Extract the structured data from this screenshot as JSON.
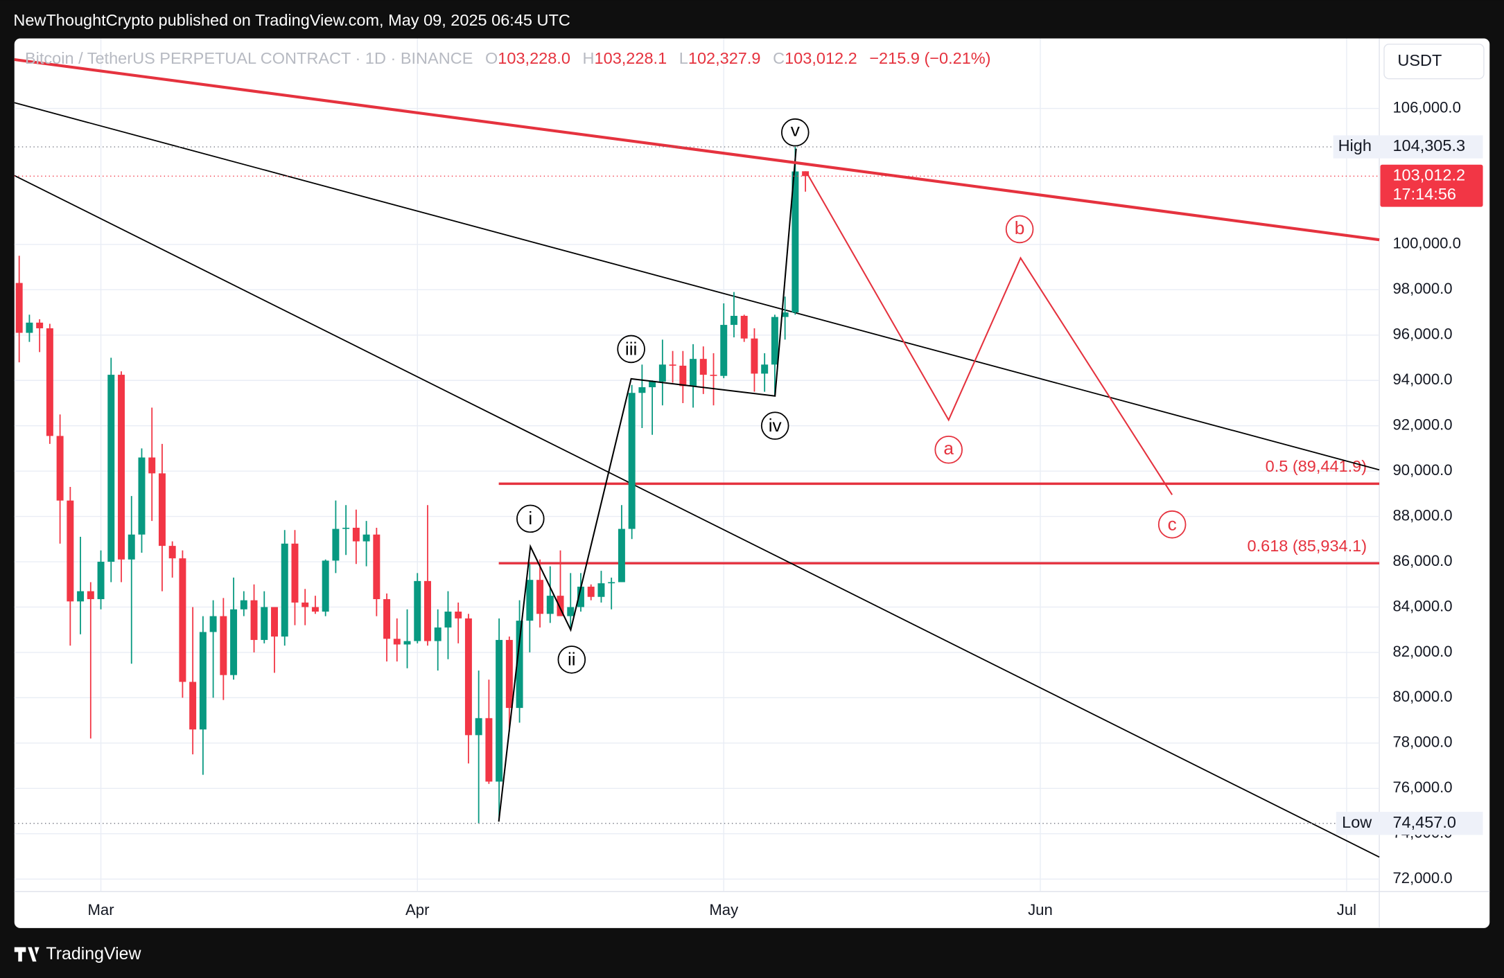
{
  "header": {
    "attribution": "NewThoughtCrypto published on TradingView.com, May 09, 2025 06:45 UTC",
    "brand": "TradingView"
  },
  "chart_data": {
    "type": "candlestick",
    "title": "Bitcoin / TetherUS PERPETUAL CONTRACT · 1D · BINANCE",
    "ohlc_header": [
      {
        "key": "O",
        "text": "103,228.0"
      },
      {
        "key": "H",
        "text": "103,228.1"
      },
      {
        "key": "L",
        "text": "102,327.9"
      },
      {
        "key": "C",
        "text": "103,012.2"
      }
    ],
    "change": "−215.9 (−0.21%)",
    "currency": "USDT",
    "open": [
      98300,
      96100,
      96550,
      96300,
      91550,
      88700,
      84250,
      84700,
      84350,
      86000,
      94250,
      86100,
      87200,
      90600,
      89900,
      86700,
      86150,
      80700,
      78600,
      82900,
      83600,
      81000,
      83900,
      84300,
      82550,
      84000,
      82700,
      86800,
      84200,
      84000,
      83800,
      86050,
      87450,
      87500,
      86900,
      87200,
      84350,
      82600,
      82350,
      82500,
      85150,
      82500,
      83100,
      83800,
      83500,
      78350,
      79100,
      76300,
      82550,
      79550,
      83400,
      85200,
      83700,
      84500,
      83600,
      84000,
      84900,
      84450,
      85050,
      85100,
      87450,
      93450,
      93700,
      93950,
      94700,
      94650,
      93750,
      94950,
      94250,
      94200,
      96450,
      96850,
      95850,
      94300,
      94700,
      96800,
      97000,
      103228.0
    ],
    "high": [
      99500,
      96900,
      96700,
      96500,
      92500,
      89300,
      87100,
      85100,
      86500,
      95000,
      94400,
      88900,
      91000,
      92800,
      91200,
      86900,
      86500,
      84000,
      83600,
      84300,
      84400,
      85300,
      84700,
      85000,
      84700,
      84000,
      87400,
      87400,
      84800,
      84500,
      86100,
      88700,
      88500,
      88300,
      87800,
      87500,
      84600,
      83500,
      83900,
      85500,
      88500,
      83900,
      84700,
      84200,
      83700,
      81200,
      80800,
      83500,
      82700,
      84300,
      85900,
      86100,
      85800,
      86500,
      85500,
      85500,
      85000,
      85600,
      85300,
      88500,
      93800,
      94700,
      94000,
      95800,
      95300,
      95300,
      95600,
      95500,
      95200,
      97400,
      97900,
      96900,
      96300,
      95200,
      96900,
      97700,
      104305.3,
      103228.1
    ],
    "low": [
      94800,
      95700,
      95250,
      91200,
      86800,
      82300,
      82800,
      78200,
      83900,
      85100,
      85100,
      81500,
      86400,
      87800,
      84700,
      85300,
      80000,
      77500,
      76600,
      80000,
      79900,
      80800,
      83600,
      82000,
      82400,
      81100,
      82300,
      83200,
      83200,
      83700,
      83600,
      85500,
      86300,
      85900,
      85800,
      83600,
      81600,
      81600,
      81300,
      82400,
      82300,
      81200,
      81700,
      82400,
      77100,
      74457,
      76200,
      74600,
      78500,
      78900,
      82000,
      83100,
      83300,
      83600,
      83100,
      83800,
      84300,
      84200,
      83900,
      85100,
      87000,
      91900,
      91600,
      92900,
      93900,
      93000,
      92800,
      93400,
      92900,
      94100,
      95900,
      95700,
      93500,
      93500,
      93300,
      95800,
      96900,
      102327.9
    ],
    "close": [
      96100,
      96550,
      96300,
      91550,
      88700,
      84250,
      84700,
      84350,
      86000,
      94250,
      86100,
      87200,
      90600,
      89900,
      86700,
      86150,
      80700,
      78600,
      82900,
      83600,
      81000,
      83900,
      84300,
      82550,
      84000,
      82700,
      86800,
      84200,
      84000,
      83800,
      86050,
      87450,
      87500,
      86900,
      87200,
      84350,
      82600,
      82350,
      82500,
      85150,
      82500,
      83100,
      83800,
      83500,
      78350,
      79100,
      76300,
      82550,
      79550,
      83400,
      85200,
      83700,
      84500,
      83600,
      84000,
      84900,
      84450,
      85050,
      85100,
      87450,
      93450,
      93700,
      93950,
      94700,
      94650,
      93750,
      94950,
      94250,
      94200,
      96450,
      96850,
      95850,
      94300,
      94700,
      96800,
      97000,
      103220,
      103012.2
    ],
    "up_color": "#089981",
    "down_color": "#f23645",
    "xlim": [
      -0.47,
      133.2
    ],
    "xticks": [
      {
        "value": 8,
        "label": "Mar"
      },
      {
        "value": 39,
        "label": "Apr"
      },
      {
        "value": 69,
        "label": "May"
      },
      {
        "value": 100,
        "label": "Jun"
      },
      {
        "value": 130,
        "label": "Jul"
      }
    ],
    "ylim": [
      71447,
      109087
    ],
    "yticks": [
      {
        "value": 72000,
        "label": "72,000.0"
      },
      {
        "value": 74000,
        "label": "74,000.0"
      },
      {
        "value": 76000,
        "label": "76,000.0"
      },
      {
        "value": 78000,
        "label": "78,000.0"
      },
      {
        "value": 80000,
        "label": "80,000.0"
      },
      {
        "value": 82000,
        "label": "82,000.0"
      },
      {
        "value": 84000,
        "label": "84,000.0"
      },
      {
        "value": 86000,
        "label": "86,000.0"
      },
      {
        "value": 88000,
        "label": "88,000.0"
      },
      {
        "value": 90000,
        "label": "90,000.0"
      },
      {
        "value": 92000,
        "label": "92,000.0"
      },
      {
        "value": 94000,
        "label": "94,000.0"
      },
      {
        "value": 96000,
        "label": "96,000.0"
      },
      {
        "value": 98000,
        "label": "98,000.0"
      },
      {
        "value": 100000,
        "label": "100,000.0"
      },
      {
        "value": 106000,
        "label": "106,000.0"
      }
    ],
    "grid": true,
    "high_marker": {
      "name": "High",
      "value": 104305.3,
      "label": "104,305.3"
    },
    "low_marker": {
      "name": "Low",
      "value": 74457.0,
      "label": "74,457.0"
    },
    "last_price": {
      "value": 103012.2,
      "label": "103,012.2",
      "countdown": "17:14:56"
    },
    "fib_levels": [
      {
        "value": 89441.9,
        "label": "0.5 (89,441.9)"
      },
      {
        "value": 85934.1,
        "label": "0.618 (85,934.1)"
      }
    ],
    "waves": [
      "i",
      "ii",
      "iii",
      "iv",
      "v"
    ],
    "projection": [
      "a",
      "b",
      "c"
    ]
  }
}
